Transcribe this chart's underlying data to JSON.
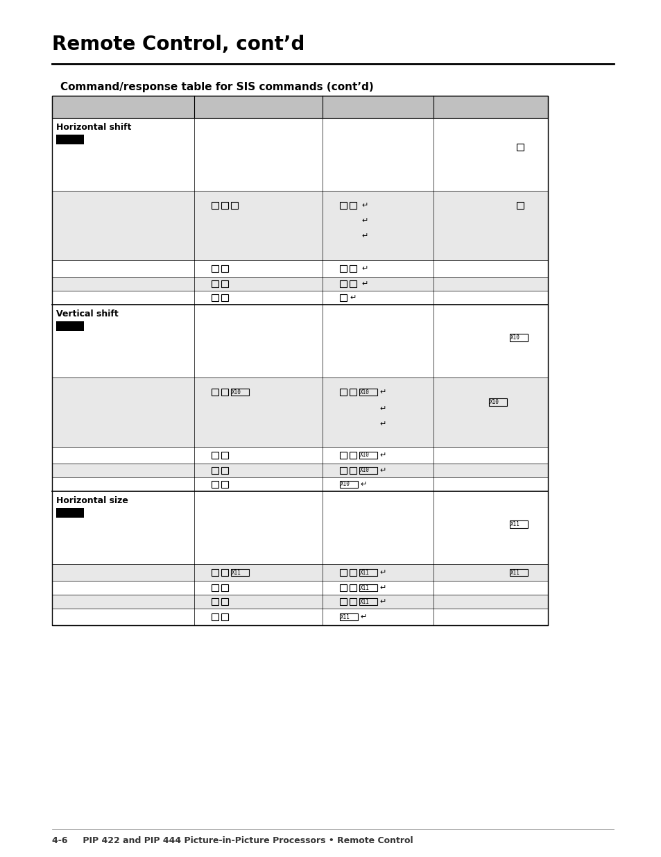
{
  "title": "Remote Control, cont’d",
  "subtitle": "Command/response table for SIS commands (cont’d)",
  "footer": "4-6     PIP 422 and PIP 444 Picture-in-Picture Processors • Remote Control",
  "bg_color": "#ffffff",
  "table_header_bg": "#c0c0c0",
  "row_alt_bg": "#e8e8e8",
  "row_white_bg": "#ffffff"
}
